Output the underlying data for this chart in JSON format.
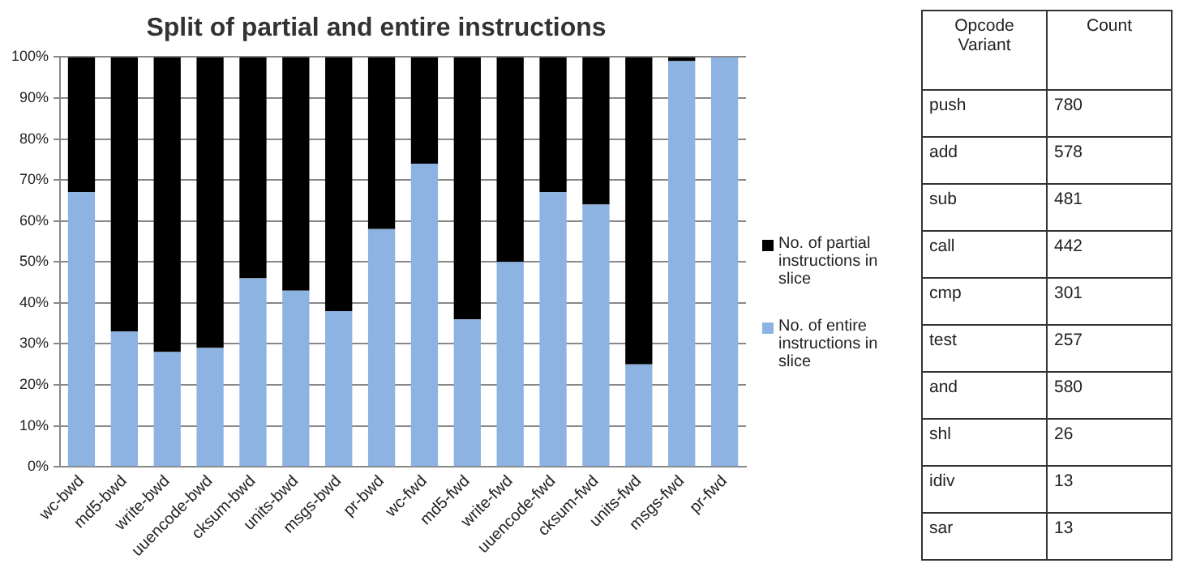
{
  "chart_data": [
    {
      "type": "bar",
      "title": "Split of partial and entire instructions",
      "stacked": true,
      "categories": [
        "wc-bwd",
        "md5-bwd",
        "write-bwd",
        "uuencode-bwd",
        "cksum-bwd",
        "units-bwd",
        "msgs-bwd",
        "pr-bwd",
        "wc-fwd",
        "md5-fwd",
        "write-fwd",
        "uuencode-fwd",
        "cksum-fwd",
        "units-fwd",
        "msgs-fwd",
        "pr-fwd"
      ],
      "series": [
        {
          "name": "No. of entire instructions in slice",
          "color": "#8db3e2",
          "values": [
            67,
            33,
            28,
            29,
            46,
            43,
            38,
            58,
            74,
            36,
            50,
            67,
            64,
            25,
            99,
            100
          ]
        },
        {
          "name": "No. of partial instructions in slice",
          "color": "#000000",
          "values": [
            33,
            67,
            72,
            71,
            54,
            57,
            62,
            42,
            26,
            64,
            50,
            33,
            36,
            75,
            1,
            0
          ]
        }
      ],
      "ylim": [
        0,
        100
      ],
      "yticks": [
        {
          "value": 0,
          "label": "0%"
        },
        {
          "value": 10,
          "label": "10%"
        },
        {
          "value": 20,
          "label": "20%"
        },
        {
          "value": 30,
          "label": "30%"
        },
        {
          "value": 40,
          "label": "40%"
        },
        {
          "value": 50,
          "label": "50%"
        },
        {
          "value": 60,
          "label": "60%"
        },
        {
          "value": 70,
          "label": "70%"
        },
        {
          "value": 80,
          "label": "80%"
        },
        {
          "value": 90,
          "label": "90%"
        },
        {
          "value": 100,
          "label": "100%"
        }
      ],
      "grid": "y",
      "legend": "right"
    },
    {
      "type": "other",
      "annotations": [
        "Opcode Variant",
        "Count"
      ],
      "categories": [
        "push",
        "add",
        "sub",
        "call",
        "cmp",
        "test",
        "and",
        "shl",
        "idiv",
        "sar"
      ],
      "values": [
        780,
        578,
        481,
        442,
        301,
        257,
        580,
        26,
        13,
        13
      ],
      "data_labels": true
    }
  ]
}
